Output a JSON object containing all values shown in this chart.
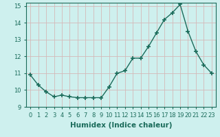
{
  "x": [
    0,
    1,
    2,
    3,
    4,
    5,
    6,
    7,
    8,
    9,
    10,
    11,
    12,
    13,
    14,
    15,
    16,
    17,
    18,
    19,
    20,
    21,
    22,
    23
  ],
  "y": [
    10.9,
    10.3,
    9.9,
    9.6,
    9.7,
    9.6,
    9.55,
    9.55,
    9.55,
    9.55,
    10.2,
    11.0,
    11.15,
    11.9,
    11.9,
    12.6,
    13.4,
    14.2,
    14.6,
    15.1,
    13.5,
    12.3,
    11.5,
    11.0
  ],
  "xlabel": "Humidex (Indice chaleur)",
  "xlim": [
    -0.5,
    23.5
  ],
  "ylim": [
    9,
    15.2
  ],
  "yticks": [
    9,
    10,
    11,
    12,
    13,
    14,
    15
  ],
  "xticks": [
    0,
    1,
    2,
    3,
    4,
    5,
    6,
    7,
    8,
    9,
    10,
    11,
    12,
    13,
    14,
    15,
    16,
    17,
    18,
    19,
    20,
    21,
    22,
    23
  ],
  "line_color": "#1a6b5a",
  "marker": "+",
  "marker_size": 4,
  "marker_lw": 1.2,
  "bg_color": "#cef0ee",
  "grid_color": "#d4b8b8",
  "tick_label_size": 6,
  "xlabel_size": 7.5,
  "line_width": 1.0
}
